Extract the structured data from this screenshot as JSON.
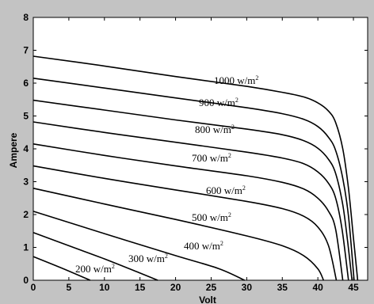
{
  "chart_data": {
    "type": "line",
    "xlabel": "Volt",
    "ylabel": "Ampere",
    "xlim": [
      0,
      47
    ],
    "ylim": [
      0,
      8
    ],
    "xticks": [
      "0",
      "5",
      "10",
      "15",
      "20",
      "25",
      "30",
      "35",
      "40",
      "45"
    ],
    "yticks": [
      "0",
      "1",
      "2",
      "3",
      "4",
      "5",
      "6",
      "7",
      "8"
    ],
    "grid": false,
    "colors": {
      "background": "#c3c3c3",
      "plot": "#ffffff",
      "line": "#000000"
    },
    "series": [
      {
        "name": "1000 w/m2",
        "label_main": "1000 w/m",
        "label_sup": "2",
        "voc": 45.6,
        "points": [
          [
            0,
            6.82
          ],
          [
            10,
            6.52
          ],
          [
            20,
            6.2
          ],
          [
            30,
            5.9
          ],
          [
            35,
            5.72
          ],
          [
            38,
            5.58
          ],
          [
            40,
            5.4
          ],
          [
            41.5,
            5.15
          ],
          [
            42.5,
            4.8
          ],
          [
            43.5,
            4.0
          ],
          [
            44.3,
            2.8
          ],
          [
            45.0,
            1.3
          ],
          [
            45.6,
            0
          ]
        ]
      },
      {
        "name": "900 w/m2",
        "label_main": "900 w/m",
        "label_sup": "2",
        "voc": 45.1,
        "points": [
          [
            0,
            6.15
          ],
          [
            10,
            5.85
          ],
          [
            20,
            5.55
          ],
          [
            30,
            5.25
          ],
          [
            35,
            5.07
          ],
          [
            38,
            4.9
          ],
          [
            40,
            4.68
          ],
          [
            41.5,
            4.35
          ],
          [
            42.5,
            3.95
          ],
          [
            43.5,
            3.1
          ],
          [
            44.3,
            1.95
          ],
          [
            45.1,
            0
          ]
        ]
      },
      {
        "name": "800 w/m2",
        "label_main": "800 w/m",
        "label_sup": "2",
        "voc": 44.8,
        "points": [
          [
            0,
            5.48
          ],
          [
            10,
            5.18
          ],
          [
            20,
            4.88
          ],
          [
            30,
            4.6
          ],
          [
            35,
            4.43
          ],
          [
            38,
            4.25
          ],
          [
            40,
            4.02
          ],
          [
            41.5,
            3.68
          ],
          [
            42.5,
            3.25
          ],
          [
            43.5,
            2.3
          ],
          [
            44.2,
            1.15
          ],
          [
            44.8,
            0
          ]
        ]
      },
      {
        "name": "700 w/m2",
        "label_main": "700 w/m",
        "label_sup": "2",
        "voc": 44.3,
        "points": [
          [
            0,
            4.82
          ],
          [
            10,
            4.5
          ],
          [
            20,
            4.2
          ],
          [
            30,
            3.9
          ],
          [
            35,
            3.72
          ],
          [
            38,
            3.55
          ],
          [
            40,
            3.3
          ],
          [
            41.5,
            2.95
          ],
          [
            42.5,
            2.5
          ],
          [
            43.4,
            1.55
          ],
          [
            44.3,
            0
          ]
        ]
      },
      {
        "name": "600 w/m2",
        "label_main": "600 w/m",
        "label_sup": "2",
        "voc": 43.5,
        "points": [
          [
            0,
            4.15
          ],
          [
            10,
            3.8
          ],
          [
            20,
            3.48
          ],
          [
            30,
            3.18
          ],
          [
            35,
            2.98
          ],
          [
            38,
            2.78
          ],
          [
            40,
            2.5
          ],
          [
            41.5,
            2.1
          ],
          [
            42.5,
            1.55
          ],
          [
            43.5,
            0
          ]
        ]
      },
      {
        "name": "500 w/m2",
        "label_main": "500 w/m",
        "label_sup": "2",
        "voc": 42.6,
        "points": [
          [
            0,
            3.48
          ],
          [
            10,
            3.1
          ],
          [
            20,
            2.75
          ],
          [
            30,
            2.4
          ],
          [
            35,
            2.18
          ],
          [
            38,
            1.95
          ],
          [
            40,
            1.62
          ],
          [
            41.5,
            1.05
          ],
          [
            42.6,
            0
          ]
        ]
      },
      {
        "name": "400 w/m2",
        "label_main": "400 w/m",
        "label_sup": "2",
        "voc": 40.8,
        "points": [
          [
            0,
            2.8
          ],
          [
            10,
            2.32
          ],
          [
            20,
            1.85
          ],
          [
            30,
            1.35
          ],
          [
            35,
            1.05
          ],
          [
            38,
            0.75
          ],
          [
            40,
            0.35
          ],
          [
            40.8,
            0
          ]
        ]
      },
      {
        "name": "300 w/m2",
        "label_main": "300 w/m",
        "label_sup": "2",
        "voc": 29.7,
        "points": [
          [
            0,
            2.1
          ],
          [
            10,
            1.42
          ],
          [
            20,
            0.75
          ],
          [
            26,
            0.36
          ],
          [
            29.7,
            0
          ]
        ]
      },
      {
        "name": "200 w/m2",
        "label_main": "200 w/m",
        "label_sup": "2",
        "voc": 17.5,
        "points": [
          [
            0,
            1.45
          ],
          [
            5,
            1.05
          ],
          [
            10,
            0.65
          ],
          [
            15,
            0.22
          ],
          [
            17.5,
            0
          ]
        ]
      },
      {
        "name": "",
        "label_main": "",
        "label_sup": "",
        "voc": 8.0,
        "points": [
          [
            0,
            0.72
          ],
          [
            4,
            0.37
          ],
          [
            8.0,
            0
          ]
        ]
      }
    ]
  }
}
